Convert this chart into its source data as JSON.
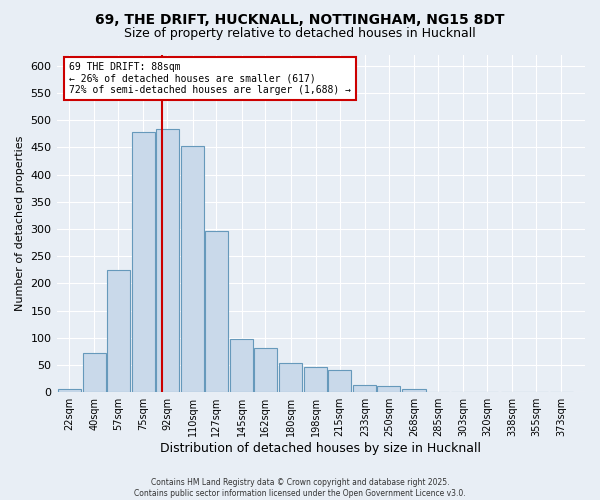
{
  "title_line1": "69, THE DRIFT, HUCKNALL, NOTTINGHAM, NG15 8DT",
  "title_line2": "Size of property relative to detached houses in Hucknall",
  "xlabel": "Distribution of detached houses by size in Hucknall",
  "ylabel": "Number of detached properties",
  "bar_labels": [
    "22sqm",
    "40sqm",
    "57sqm",
    "75sqm",
    "92sqm",
    "110sqm",
    "127sqm",
    "145sqm",
    "162sqm",
    "180sqm",
    "198sqm",
    "215sqm",
    "233sqm",
    "250sqm",
    "268sqm",
    "285sqm",
    "303sqm",
    "320sqm",
    "338sqm",
    "355sqm",
    "373sqm"
  ],
  "bar_centers": [
    22,
    40,
    57,
    75,
    92,
    110,
    127,
    145,
    162,
    180,
    198,
    215,
    233,
    250,
    268,
    285,
    303,
    320,
    338,
    355,
    373
  ],
  "bar_values": [
    5,
    73,
    224,
    478,
    484,
    453,
    296,
    98,
    81,
    54,
    46,
    41,
    13,
    12,
    5,
    0,
    0,
    0,
    0,
    0,
    0
  ],
  "bar_color": "#c9d9ea",
  "bar_edgecolor": "#6699bb",
  "bar_width": 16.5,
  "vline_x": 88,
  "vline_color": "#cc0000",
  "annotation_text": "69 THE DRIFT: 88sqm\n← 26% of detached houses are smaller (617)\n72% of semi-detached houses are larger (1,688) →",
  "annotation_box_edgecolor": "#cc0000",
  "annotation_box_facecolor": "#ffffff",
  "ylim": [
    0,
    620
  ],
  "yticks": [
    0,
    50,
    100,
    150,
    200,
    250,
    300,
    350,
    400,
    450,
    500,
    550,
    600
  ],
  "xlim_left": 13,
  "xlim_right": 390,
  "footnote": "Contains HM Land Registry data © Crown copyright and database right 2025.\nContains public sector information licensed under the Open Government Licence v3.0.",
  "background_color": "#e8eef5",
  "plot_background_color": "#e8eef5",
  "grid_color": "#ffffff",
  "title_fontsize": 10,
  "subtitle_fontsize": 9,
  "annotation_fontsize": 7,
  "ylabel_fontsize": 8,
  "xlabel_fontsize": 9,
  "tick_fontsize": 7,
  "ytick_fontsize": 8
}
